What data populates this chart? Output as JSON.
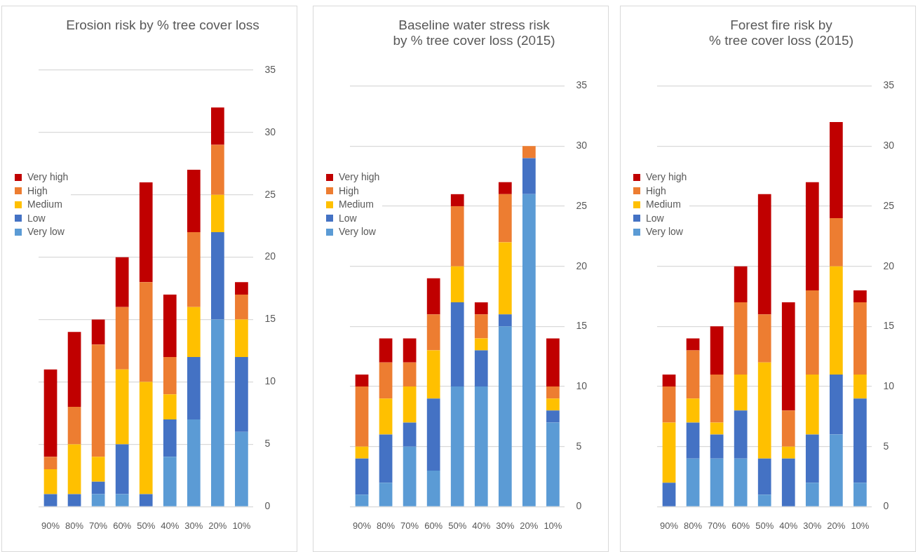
{
  "chart_data": [
    {
      "type": "bar",
      "title": "Erosion risk by % tree cover loss",
      "categories": [
        "90%",
        "80%",
        "70%",
        "60%",
        "50%",
        "40%",
        "30%",
        "20%",
        "10%"
      ],
      "stacked": true,
      "ylim": [
        0,
        35
      ],
      "yticks": [
        0,
        5,
        10,
        15,
        20,
        25,
        30,
        35
      ],
      "grid": "y",
      "legend": "left",
      "series": [
        {
          "name": "Very low",
          "color": "#5b9bd5",
          "values": [
            0,
            0,
            1,
            1,
            0,
            4,
            7,
            15,
            6
          ]
        },
        {
          "name": "Low",
          "color": "#4472c4",
          "values": [
            1,
            1,
            1,
            4,
            1,
            3,
            5,
            7,
            6
          ]
        },
        {
          "name": "Medium",
          "color": "#ffc000",
          "values": [
            2,
            4,
            2,
            6,
            9,
            2,
            4,
            3,
            3
          ]
        },
        {
          "name": "High",
          "color": "#ed7d31",
          "values": [
            1,
            3,
            9,
            5,
            8,
            3,
            6,
            4,
            2
          ]
        },
        {
          "name": "Very high",
          "color": "#c00000",
          "values": [
            7,
            6,
            2,
            4,
            8,
            5,
            5,
            3,
            1
          ]
        }
      ]
    },
    {
      "type": "bar",
      "title": "Baseline water stress risk\nby % tree cover loss (2015)",
      "categories": [
        "90%",
        "80%",
        "70%",
        "60%",
        "50%",
        "40%",
        "30%",
        "20%",
        "10%"
      ],
      "stacked": true,
      "ylim": [
        0,
        35
      ],
      "yticks": [
        0,
        5,
        10,
        15,
        20,
        25,
        30,
        35
      ],
      "grid": "y",
      "legend": "left",
      "series": [
        {
          "name": "Very low",
          "color": "#5b9bd5",
          "values": [
            1,
            2,
            5,
            3,
            10,
            10,
            15,
            26,
            7
          ]
        },
        {
          "name": "Low",
          "color": "#4472c4",
          "values": [
            3,
            4,
            2,
            6,
            7,
            3,
            1,
            3,
            1
          ]
        },
        {
          "name": "Medium",
          "color": "#ffc000",
          "values": [
            1,
            3,
            3,
            4,
            3,
            1,
            6,
            0,
            1
          ]
        },
        {
          "name": "High",
          "color": "#ed7d31",
          "values": [
            5,
            3,
            2,
            3,
            5,
            2,
            4,
            1,
            1
          ]
        },
        {
          "name": "Very high",
          "color": "#c00000",
          "values": [
            1,
            2,
            2,
            3,
            1,
            1,
            1,
            0,
            4
          ]
        }
      ]
    },
    {
      "type": "bar",
      "title": "Forest fire risk by\n% tree cover loss (2015)",
      "categories": [
        "90%",
        "80%",
        "70%",
        "60%",
        "50%",
        "40%",
        "30%",
        "20%",
        "10%"
      ],
      "stacked": true,
      "ylim": [
        0,
        35
      ],
      "yticks": [
        0,
        5,
        10,
        15,
        20,
        25,
        30,
        35
      ],
      "grid": "y",
      "legend": "left",
      "series": [
        {
          "name": "Very low",
          "color": "#5b9bd5",
          "values": [
            0,
            4,
            4,
            4,
            1,
            0,
            2,
            6,
            2
          ]
        },
        {
          "name": "Low",
          "color": "#4472c4",
          "values": [
            2,
            3,
            2,
            4,
            3,
            4,
            4,
            5,
            7
          ]
        },
        {
          "name": "Medium",
          "color": "#ffc000",
          "values": [
            5,
            2,
            1,
            3,
            8,
            1,
            5,
            9,
            2
          ]
        },
        {
          "name": "High",
          "color": "#ed7d31",
          "values": [
            3,
            4,
            4,
            6,
            4,
            3,
            7,
            4,
            6
          ]
        },
        {
          "name": "Very high",
          "color": "#c00000",
          "values": [
            1,
            1,
            4,
            3,
            10,
            9,
            9,
            8,
            1
          ]
        }
      ]
    }
  ]
}
